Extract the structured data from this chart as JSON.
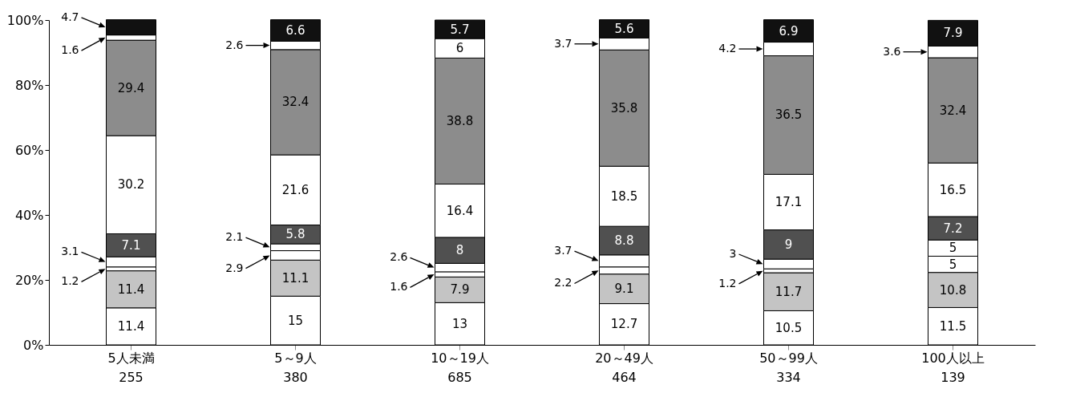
{
  "chart_data": {
    "type": "bar",
    "stacked": true,
    "data_labels": true,
    "grid": false,
    "categories": [
      "5人未満\n255",
      "5～9人\n380",
      "10～19人\n685",
      "20～49人\n464",
      "50～99人\n334",
      "100人以上\n139"
    ],
    "ylim": [
      0,
      100
    ],
    "yticks": [
      {
        "value": 0,
        "label": "0%"
      },
      {
        "value": 20,
        "label": "20%"
      },
      {
        "value": 40,
        "label": "40%"
      },
      {
        "value": 60,
        "label": "60%"
      },
      {
        "value": 80,
        "label": "80%"
      },
      {
        "value": 100,
        "label": "100%"
      }
    ],
    "series": [
      {
        "color": "#ffffff",
        "values": [
          11.4,
          15,
          13,
          12.7,
          10.5,
          11.5
        ]
      },
      {
        "color": "#c4c4c4",
        "values": [
          11.4,
          11.1,
          7.9,
          9.1,
          11.7,
          10.8
        ]
      },
      {
        "color": "#ffffff",
        "values": [
          1.2,
          2.9,
          1.6,
          2.2,
          1.2,
          5
        ]
      },
      {
        "color": "#ffffff",
        "values": [
          3.1,
          2.1,
          2.6,
          3.7,
          3,
          5
        ]
      },
      {
        "color": "#505050",
        "values": [
          7.1,
          5.8,
          8,
          8.8,
          9,
          7.2
        ]
      },
      {
        "color": "#ffffff",
        "values": [
          30.2,
          21.6,
          16.4,
          18.5,
          17.1,
          16.5
        ]
      },
      {
        "color": "#8c8c8c",
        "values": [
          29.4,
          32.4,
          38.8,
          35.8,
          36.5,
          32.4
        ]
      },
      {
        "color": "#ffffff",
        "values": [
          1.6,
          2.6,
          6,
          3.7,
          4.2,
          3.6
        ]
      },
      {
        "color": "#111111",
        "values": [
          4.7,
          6.6,
          5.7,
          5.6,
          6.9,
          7.9
        ]
      }
    ]
  }
}
